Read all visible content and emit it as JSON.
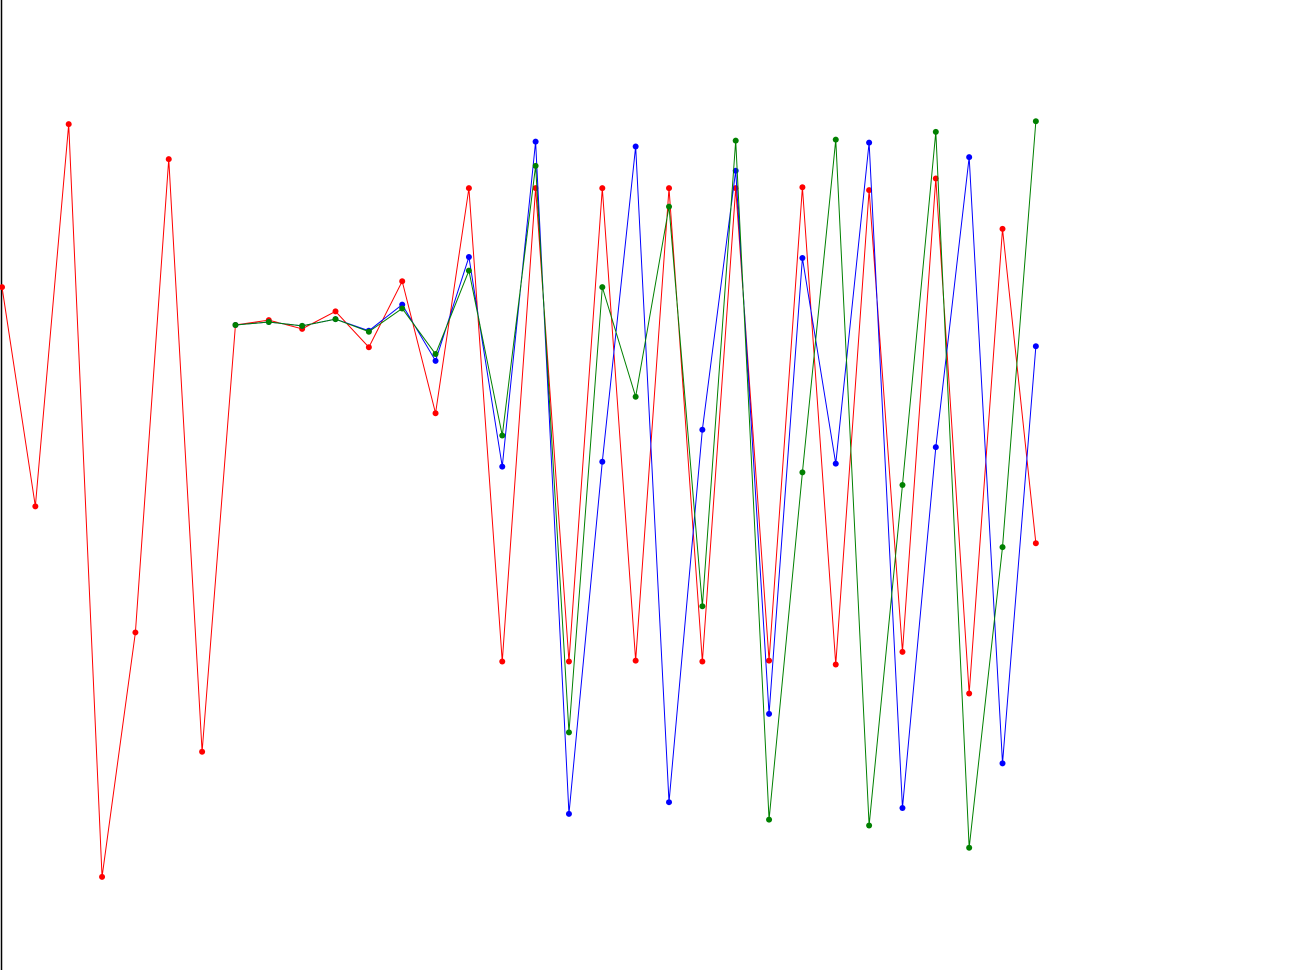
{
  "chart_data": {
    "type": "line",
    "title": "",
    "xlabel": "",
    "ylabel": "",
    "x": [
      0,
      1,
      2,
      3,
      4,
      5,
      6,
      7,
      8,
      9,
      10,
      11,
      12,
      13,
      14,
      15,
      16,
      17,
      18,
      19,
      20,
      21,
      22,
      23,
      24,
      25,
      26,
      27,
      28,
      29,
      30,
      31
    ],
    "xlim": [
      0,
      38.8
    ],
    "ylim": [
      0,
      100
    ],
    "grid": false,
    "legend": "none",
    "series": [
      {
        "color": "#ff0000",
        "values": [
          70.4,
          47.8,
          87.2,
          9.6,
          34.8,
          83.6,
          22.5,
          66.5,
          67.0,
          66.1,
          67.9,
          64.2,
          71.0,
          57.4,
          80.6,
          31.8,
          80.6,
          31.8,
          80.6,
          31.9,
          80.6,
          31.8,
          80.6,
          31.9,
          80.7,
          31.5,
          80.4,
          32.8,
          81.6,
          28.5,
          76.4,
          44.0
        ]
      },
      {
        "color": "#0000ff",
        "values": [
          null,
          null,
          null,
          null,
          null,
          null,
          null,
          66.5,
          66.8,
          66.4,
          67.1,
          65.9,
          68.6,
          62.8,
          73.5,
          51.9,
          85.4,
          16.1,
          52.4,
          84.9,
          17.3,
          55.7,
          82.4,
          26.4,
          73.4,
          52.2,
          85.3,
          16.7,
          53.9,
          83.8,
          21.3,
          64.3
        ]
      },
      {
        "color": "#008000",
        "values": [
          null,
          null,
          null,
          null,
          null,
          null,
          null,
          66.5,
          66.8,
          66.4,
          67.1,
          65.8,
          68.2,
          63.5,
          72.1,
          55.1,
          82.9,
          24.5,
          70.4,
          59.1,
          78.7,
          37.5,
          85.5,
          15.5,
          51.3,
          85.6,
          14.9,
          50.0,
          86.4,
          12.6,
          43.6,
          87.5
        ]
      }
    ]
  }
}
